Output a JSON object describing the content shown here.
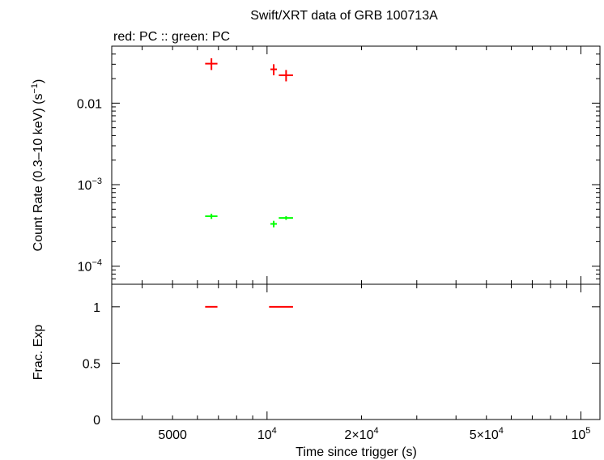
{
  "chart_data": [
    {
      "type": "scatter",
      "title": "Swift/XRT data of GRB 100713A",
      "subtitle": "red: PC  :: green: PC",
      "ylabel": "Count Rate (0.3–10 keV) (s",
      "ylabel_sup": "−1",
      "ylabel_close": ")",
      "yscale": "log",
      "xscale": "log",
      "xlim": [
        3200,
        115000
      ],
      "ylim": [
        6e-05,
        0.05
      ],
      "yticks": [
        {
          "value": 0.01,
          "base": "0.01",
          "sup": ""
        },
        {
          "value": 0.001,
          "base": "10",
          "sup": "−3"
        },
        {
          "value": 0.0001,
          "base": "10",
          "sup": "−4"
        }
      ],
      "series": [
        {
          "color": "#ff0000",
          "points": [
            {
              "x": 6650,
              "xerr": [
                300,
                300
              ],
              "y": 0.0305,
              "yerr": [
                0.005,
                0.005
              ]
            },
            {
              "x": 10500,
              "xerr": [
                250,
                250
              ],
              "y": 0.026,
              "yerr": [
                0.004,
                0.004
              ]
            },
            {
              "x": 11500,
              "xerr": [
                600,
                600
              ],
              "y": 0.022,
              "yerr": [
                0.0035,
                0.0035
              ]
            }
          ]
        },
        {
          "color": "#00ff00",
          "points": [
            {
              "x": 6650,
              "xerr": [
                300,
                300
              ],
              "y": 0.00041,
              "yerr": [
                3e-05,
                3e-05
              ]
            },
            {
              "x": 10500,
              "xerr": [
                250,
                250
              ],
              "y": 0.00033,
              "yerr": [
                3e-05,
                3e-05
              ]
            },
            {
              "x": 11500,
              "xerr": [
                600,
                600
              ],
              "y": 0.00039,
              "yerr": [
                2e-05,
                2e-05
              ]
            }
          ]
        }
      ]
    },
    {
      "type": "scatter",
      "ylabel": "Frac. Exp",
      "xlabel": "Time since trigger (s)",
      "xscale": "log",
      "xlim": [
        3200,
        115000
      ],
      "ylim": [
        0,
        1.2
      ],
      "yticks": [
        {
          "value": 0,
          "label": "0"
        },
        {
          "value": 0.5,
          "label": "0.5"
        },
        {
          "value": 1,
          "label": "1"
        }
      ],
      "xticks": [
        {
          "value": 5000,
          "base": "5000",
          "sup": ""
        },
        {
          "value": 10000,
          "base": "10",
          "sup": "4"
        },
        {
          "value": 20000,
          "base": "2×10",
          "sup": "4"
        },
        {
          "value": 50000,
          "base": "5×10",
          "sup": "4"
        },
        {
          "value": 100000,
          "base": "10",
          "sup": "5"
        }
      ],
      "series": [
        {
          "color": "#ff0000",
          "points": [
            {
              "x": 6650,
              "xerr": [
                300,
                300
              ],
              "y": 1
            },
            {
              "x": 10900,
              "xerr": [
                750,
                1200
              ],
              "y": 1
            }
          ]
        }
      ]
    }
  ]
}
